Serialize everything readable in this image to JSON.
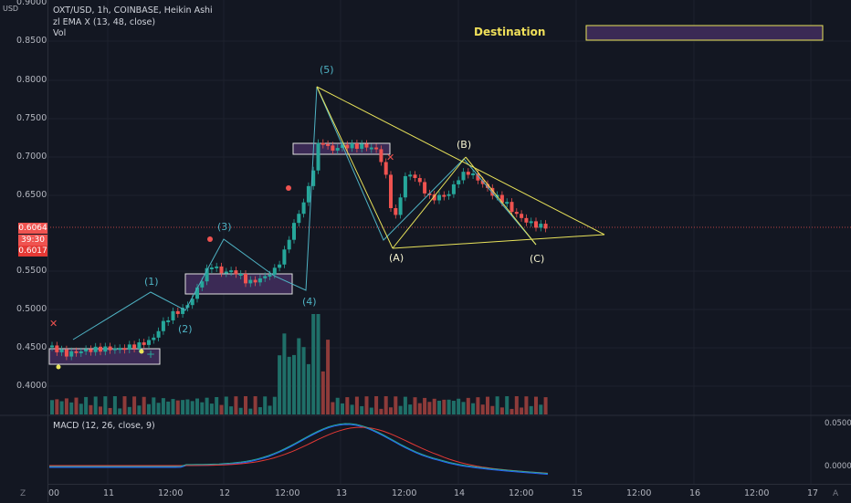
{
  "chart": {
    "title_line": "OXT/USD, 1h, COINBASE, Heikin Ashi",
    "indicator_line": "zl EMA X (13, 48, close)",
    "volume_label": "Vol",
    "macd_label": "MACD (12, 26, close, 9)",
    "currency": "USD"
  },
  "price_axis": {
    "ticks": [
      "0.9000",
      "0.8500",
      "0.8000",
      "0.7500",
      "0.7000",
      "0.6500",
      "0.5500",
      "0.5000",
      "0.4500",
      "0.4000"
    ],
    "current_price": "0.6064",
    "countdown": "39:30",
    "ema_value": "0.6017"
  },
  "time_axis": {
    "ticks": [
      "00",
      "11",
      "12:00",
      "12",
      "12:00",
      "13",
      "12:00",
      "14",
      "12:00",
      "15",
      "12:00",
      "16",
      "12:00",
      "17"
    ]
  },
  "macd_axis": {
    "ticks": [
      "0.0500",
      "0.0000"
    ]
  },
  "annotations": {
    "destination": "Destination",
    "waves": [
      "(1)",
      "(2)",
      "(3)",
      "(4)",
      "(5)",
      "(A)",
      "(B)",
      "(C)"
    ]
  },
  "colors": {
    "bg": "#131722",
    "up": "#26a69a",
    "down": "#ef5350",
    "box_fill": "#3b2a55",
    "destination_text": "#f0e05a",
    "wave_line": "#26a69a",
    "triangle_line": "#e9e35a"
  }
}
